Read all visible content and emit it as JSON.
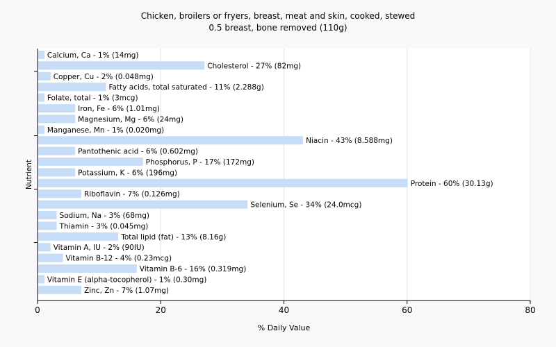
{
  "chart_data": {
    "type": "bar",
    "orientation": "horizontal",
    "title": "Chicken, broilers or fryers, breast, meat and skin, cooked, stewed",
    "subtitle": "0.5 breast, bone removed (110g)",
    "xlabel": "% Daily Value",
    "ylabel": "Nutrient",
    "xlim": [
      0,
      80
    ],
    "xticks": [
      0,
      20,
      40,
      60,
      80
    ],
    "grid": "vertical",
    "bar_color": "#c6dcf7",
    "categories": [
      "Calcium, Ca",
      "Cholesterol",
      "Copper, Cu",
      "Fatty acids, total saturated",
      "Folate, total",
      "Iron, Fe",
      "Magnesium, Mg",
      "Manganese, Mn",
      "Niacin",
      "Pantothenic acid",
      "Phosphorus, P",
      "Potassium, K",
      "Protein",
      "Riboflavin",
      "Selenium, Se",
      "Sodium, Na",
      "Thiamin",
      "Total lipid (fat)",
      "Vitamin A, IU",
      "Vitamin B-12",
      "Vitamin B-6",
      "Vitamin E (alpha-tocopherol)",
      "Zinc, Zn"
    ],
    "values": [
      1,
      27,
      2,
      11,
      1,
      6,
      6,
      1,
      43,
      6,
      17,
      6,
      60,
      7,
      34,
      3,
      3,
      13,
      2,
      4,
      16,
      1,
      7
    ],
    "labels": [
      "Calcium, Ca - 1% (14mg)",
      "Cholesterol - 27% (82mg)",
      "Copper, Cu - 2% (0.048mg)",
      "Fatty acids, total saturated - 11% (2.288g)",
      "Folate, total - 1% (3mcg)",
      "Iron, Fe - 6% (1.01mg)",
      "Magnesium, Mg - 6% (24mg)",
      "Manganese, Mn - 1% (0.020mg)",
      "Niacin - 43% (8.588mg)",
      "Pantothenic acid - 6% (0.602mg)",
      "Phosphorus, P - 17% (172mg)",
      "Potassium, K - 6% (196mg)",
      "Protein - 60% (30.13g)",
      "Riboflavin - 7% (0.126mg)",
      "Selenium, Se - 34% (24.0mcg)",
      "Sodium, Na - 3% (68mg)",
      "Thiamin - 3% (0.045mg)",
      "Total lipid (fat) - 13% (8.16g)",
      "Vitamin A, IU - 2% (90IU)",
      "Vitamin B-12 - 4% (0.23mcg)",
      "Vitamin B-6 - 16% (0.319mg)",
      "Vitamin E (alpha-tocopherol) - 1% (0.30mg)",
      "Zinc, Zn - 7% (1.07mg)"
    ]
  }
}
